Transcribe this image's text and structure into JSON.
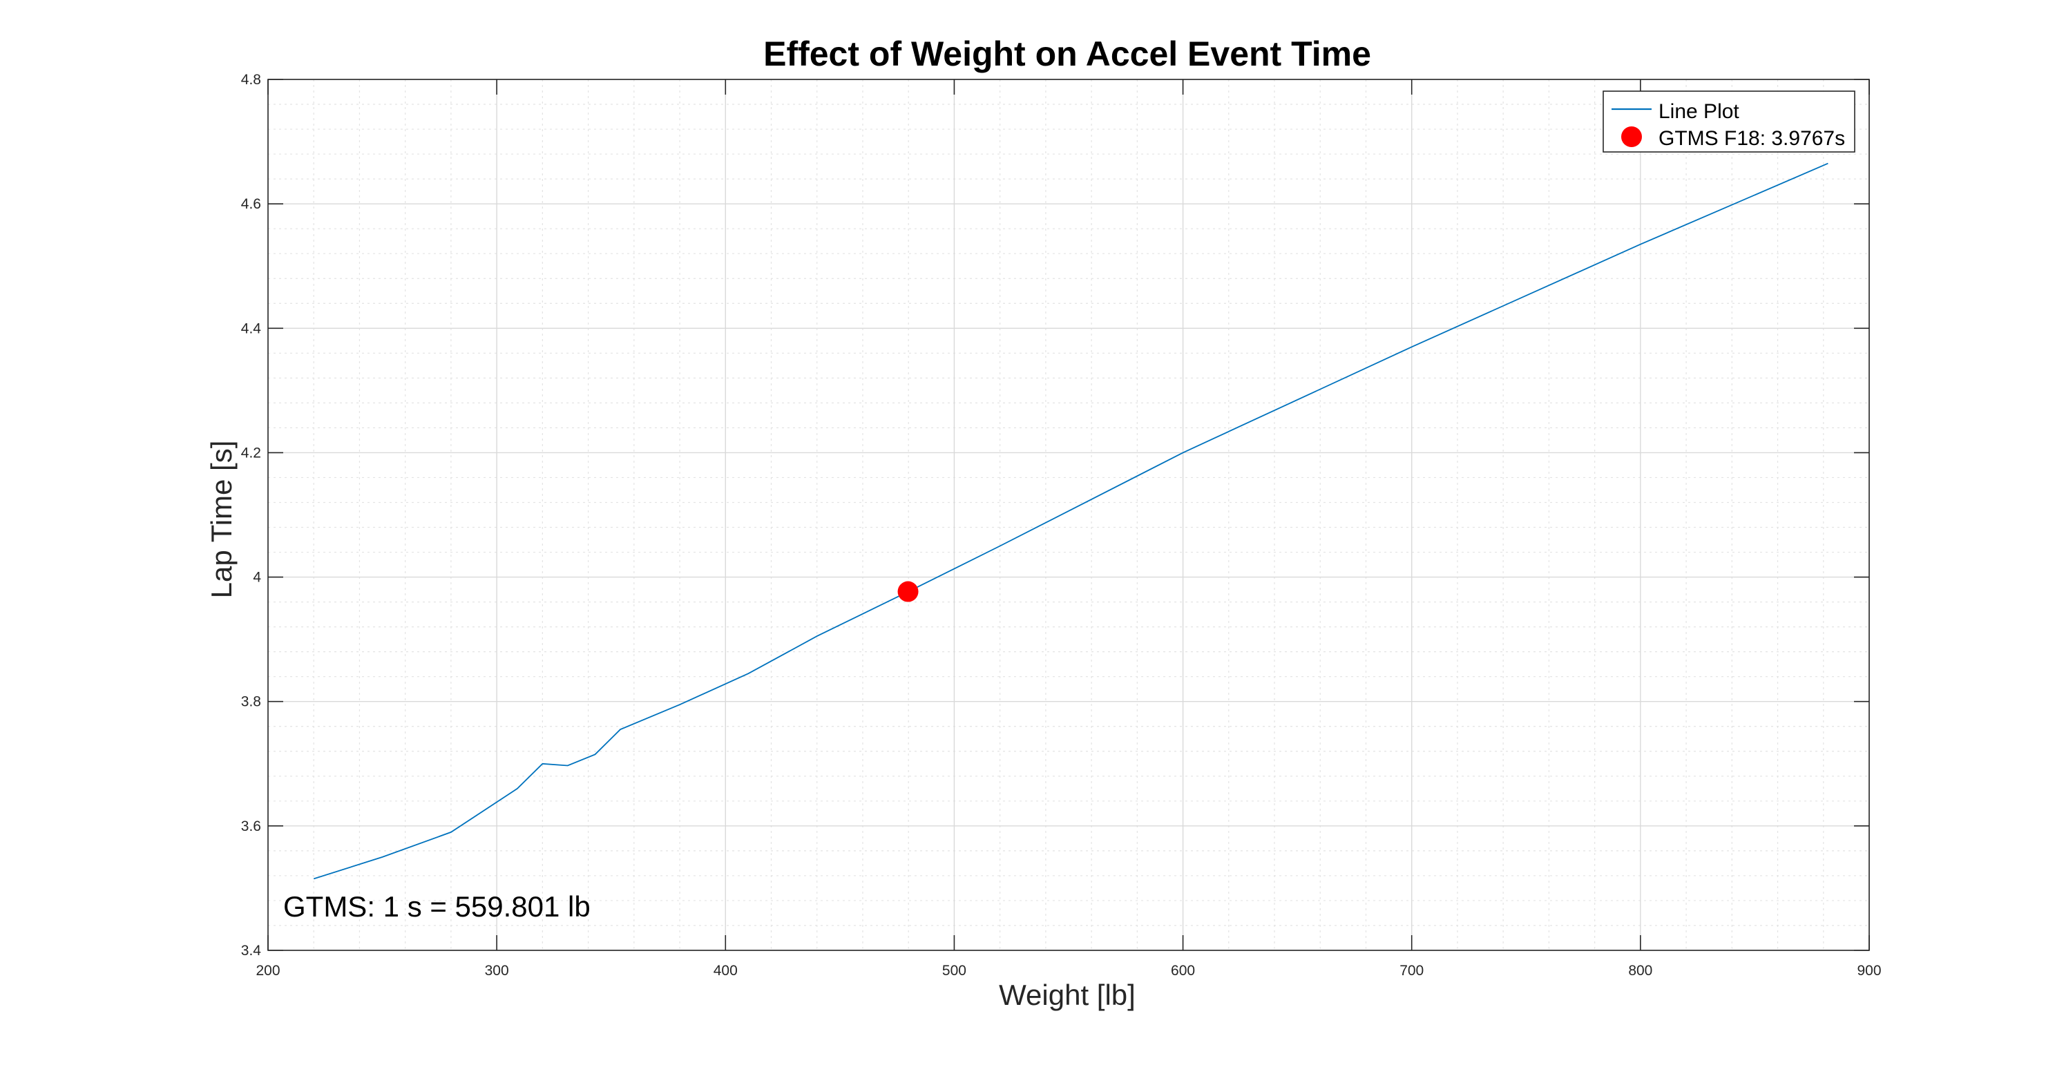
{
  "chart_data": {
    "type": "line",
    "title": "Effect of Weight on Accel Event Time",
    "xlabel": "Weight [lb]",
    "ylabel": "Lap Time [s]",
    "xlim": [
      200,
      900
    ],
    "ylim": [
      3.4,
      4.8
    ],
    "x_ticks": [
      200,
      300,
      400,
      500,
      600,
      700,
      800,
      900
    ],
    "y_ticks": [
      3.4,
      3.6,
      3.8,
      4,
      4.2,
      4.4,
      4.6,
      4.8
    ],
    "x_tick_labels": [
      "200",
      "300",
      "400",
      "500",
      "600",
      "700",
      "800",
      "900"
    ],
    "y_tick_labels": [
      "3.4",
      "3.6",
      "3.8",
      "4",
      "4.2",
      "4.4",
      "4.6",
      "4.8"
    ],
    "grid": true,
    "minor_grid": true,
    "legend_position": "top-right",
    "series": [
      {
        "name": "Line Plot",
        "color": "#0072BD",
        "x": [
          220,
          250,
          280,
          309,
          320,
          331,
          343,
          354,
          380,
          410,
          440,
          479,
          520,
          600,
          700,
          800,
          882
        ],
        "y": [
          3.515,
          3.55,
          3.59,
          3.66,
          3.7,
          3.697,
          3.715,
          3.755,
          3.795,
          3.845,
          3.905,
          3.975,
          4.05,
          4.2,
          4.37,
          4.535,
          4.665
        ]
      }
    ],
    "points": [
      {
        "name": "GTMS F18: 3.9767s",
        "x": 479.8,
        "y": 3.9767,
        "color": "#ff0000"
      }
    ],
    "annotations": [
      {
        "text": "GTMS: 1 s = 559.801 lb"
      }
    ]
  }
}
